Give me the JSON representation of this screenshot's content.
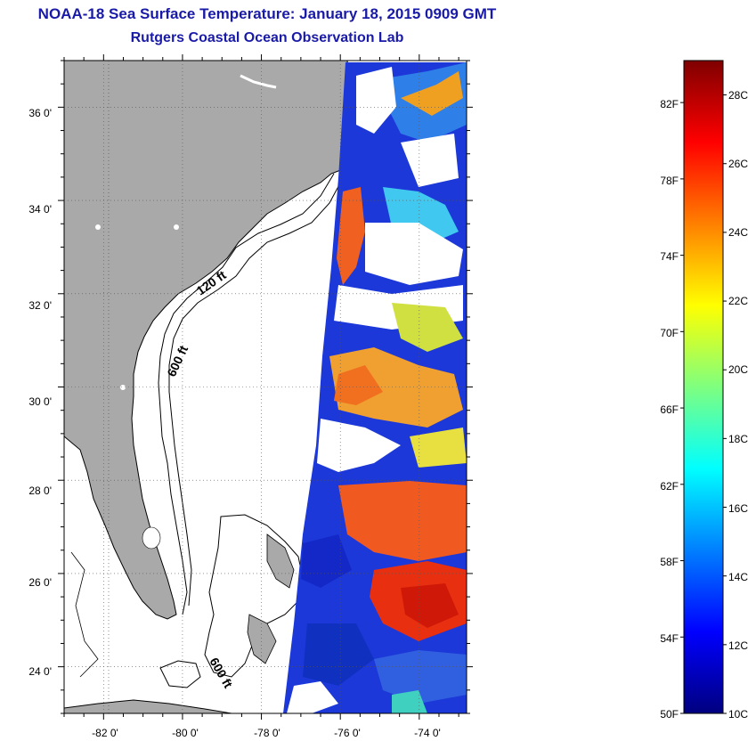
{
  "header": {
    "title": "NOAA-18 Sea Surface Temperature:  January 18, 2015 0909 GMT",
    "subtitle": "Rutgers Coastal Ocean Observation Lab"
  },
  "map": {
    "lon_range": [
      -83,
      -72.8
    ],
    "lat_range": [
      23,
      37
    ],
    "lon_ticks": [
      "-82 0'",
      "-80 0'",
      "-78 0'",
      "-76 0'",
      "-74 0'"
    ],
    "lat_ticks": [
      "36 0'",
      "34 0'",
      "32 0'",
      "30 0'",
      "28 0'",
      "26 0'",
      "24 0'"
    ],
    "contour_labels": [
      "120 ft",
      "600 ft",
      "600 ft"
    ],
    "colors": {
      "land": "#a9a9a9",
      "water": "#ffffff",
      "title": "#1a1aa8"
    }
  },
  "colorbar": {
    "fahrenheit": [
      "82F",
      "78F",
      "74F",
      "70F",
      "66F",
      "62F",
      "58F",
      "54F",
      "50F"
    ],
    "celsius": [
      "28C",
      "26C",
      "24C",
      "22C",
      "20C",
      "18C",
      "16C",
      "14C",
      "12C",
      "10C"
    ],
    "range_c": [
      10,
      29
    ]
  }
}
